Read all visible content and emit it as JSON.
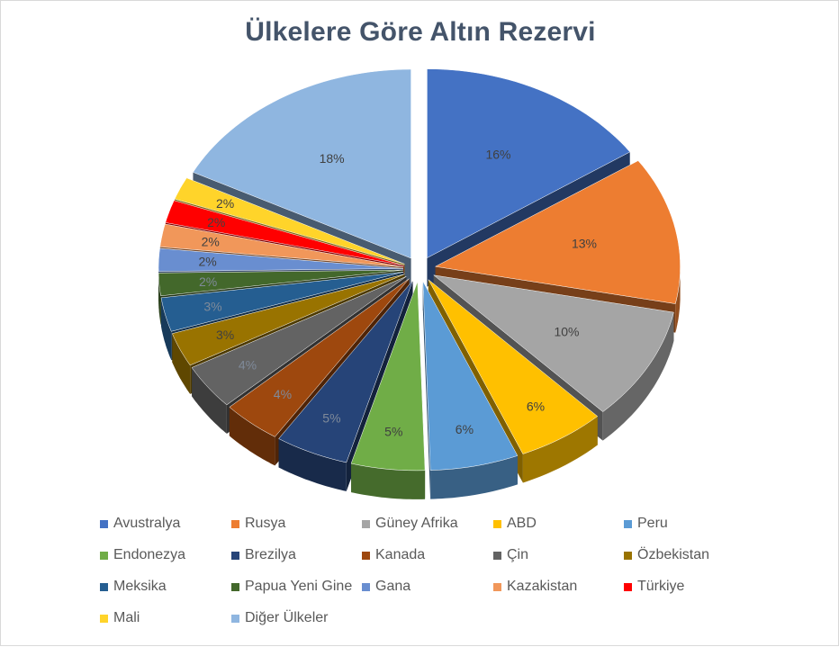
{
  "chart_data": {
    "type": "pie",
    "title": "Ülkelere Göre Altın Rezervi",
    "legend_position": "bottom",
    "slices": [
      {
        "name": "Avustralya",
        "value": 16,
        "label": "16%",
        "color": "#4472c4"
      },
      {
        "name": "Rusya",
        "value": 13,
        "label": "13%",
        "color": "#ed7d31"
      },
      {
        "name": "Güney Afrika",
        "value": 10,
        "label": "10%",
        "color": "#a5a5a5"
      },
      {
        "name": "ABD",
        "value": 6,
        "label": "6%",
        "color": "#ffc000"
      },
      {
        "name": "Peru",
        "value": 6,
        "label": "6%",
        "color": "#5b9bd5"
      },
      {
        "name": "Endonezya",
        "value": 5,
        "label": "5%",
        "color": "#70ad47"
      },
      {
        "name": "Brezilya",
        "value": 5,
        "label": "5%",
        "color": "#264478"
      },
      {
        "name": "Kanada",
        "value": 4,
        "label": "4%",
        "color": "#9e480e"
      },
      {
        "name": "Çin",
        "value": 4,
        "label": "4%",
        "color": "#636363"
      },
      {
        "name": "Özbekistan",
        "value": 3,
        "label": "3%",
        "color": "#997300"
      },
      {
        "name": "Meksika",
        "value": 3,
        "label": "3%",
        "color": "#255e91"
      },
      {
        "name": "Papua Yeni Gine",
        "value": 2,
        "label": "2%",
        "color": "#43682b"
      },
      {
        "name": "Gana",
        "value": 2,
        "label": "2%",
        "color": "#698ed0"
      },
      {
        "name": "Kazakistan",
        "value": 2,
        "label": "2%",
        "color": "#f1975a"
      },
      {
        "name": "Türkiye",
        "value": 2,
        "label": "2%",
        "color": "#ff0000"
      },
      {
        "name": "Mali",
        "value": 2,
        "label": "2%",
        "color": "#ffd42a"
      },
      {
        "name": "Diğer Ülkeler",
        "value": 18,
        "label": "18%",
        "color": "#8fb6e0"
      }
    ]
  }
}
